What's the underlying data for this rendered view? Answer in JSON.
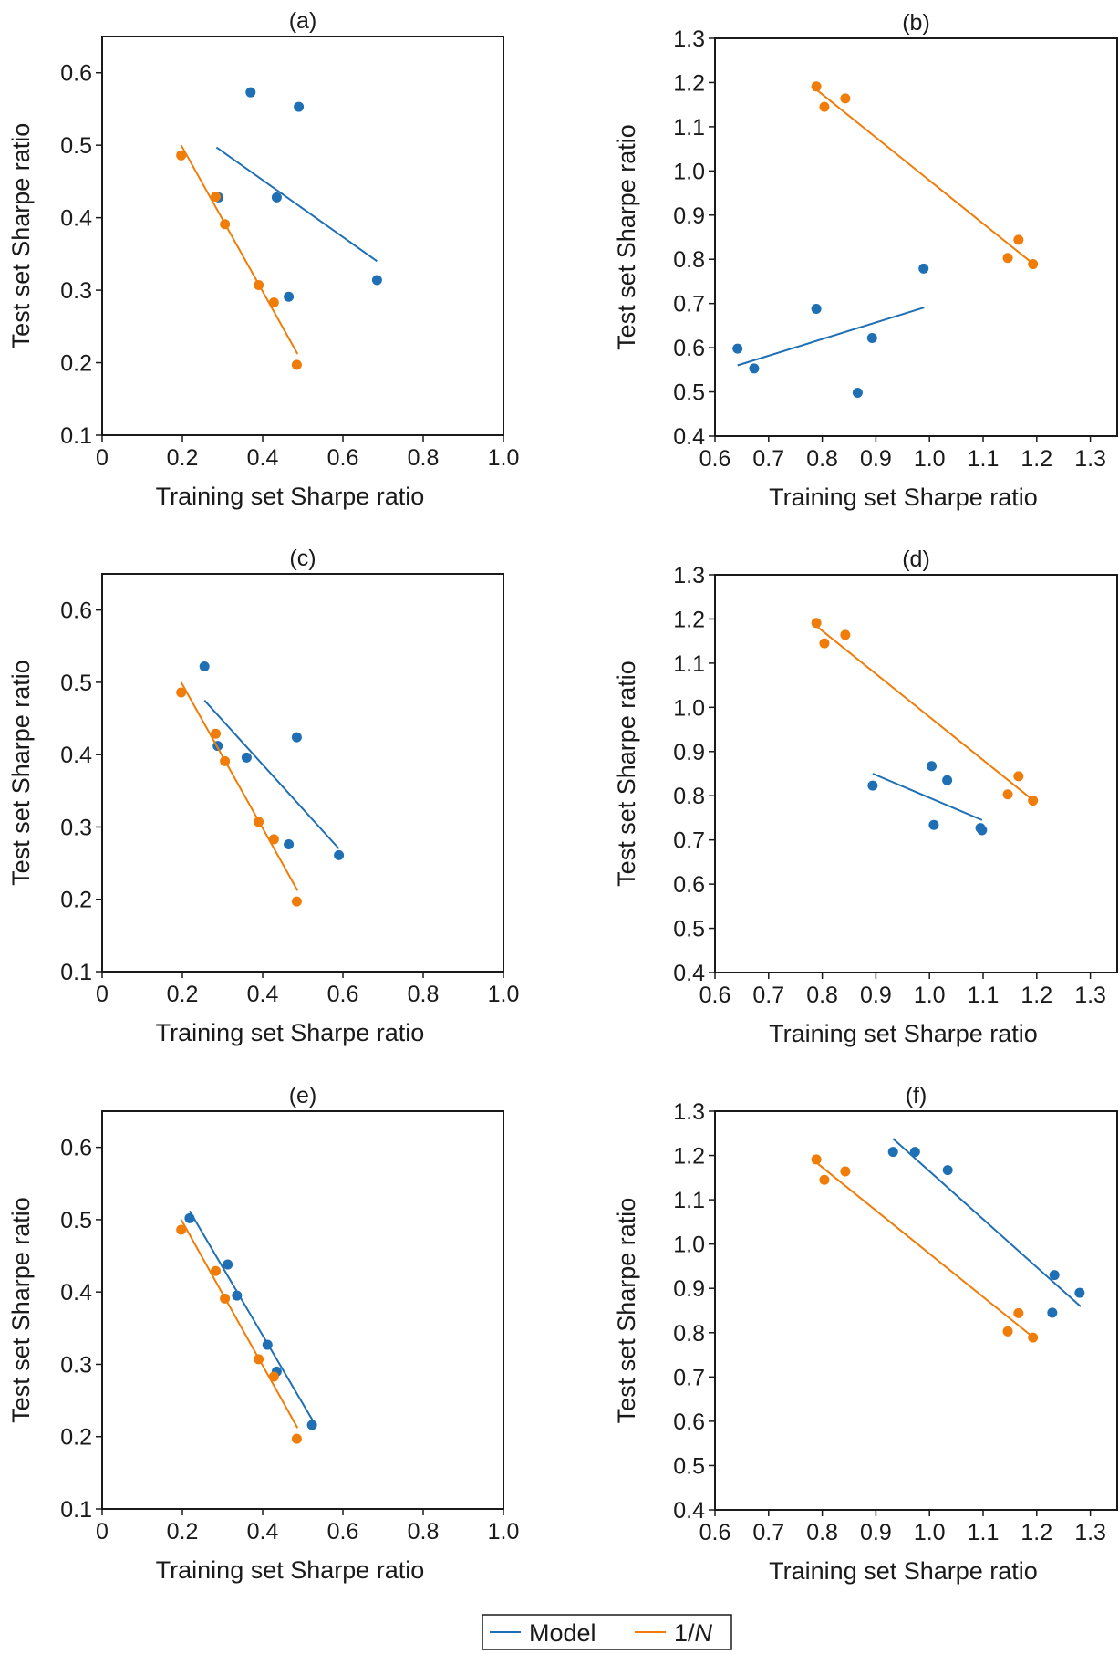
{
  "colors": {
    "model": "#1f6fb4",
    "one_over_n": "#f07c0a",
    "axis": "#1a1a1a"
  },
  "legend": {
    "entries": [
      {
        "key": "model",
        "label": "Model",
        "italic_part": ""
      },
      {
        "key": "one_over_n",
        "label": "1/",
        "italic_part": "N"
      }
    ]
  },
  "chart_data": [
    {
      "id": "a",
      "type": "scatter",
      "title": "(a)",
      "xlabel": "Training set Sharpe ratio",
      "ylabel": "Test set Sharpe ratio",
      "xlim": [
        0,
        1.0
      ],
      "ylim": [
        0.1,
        0.65
      ],
      "xticks": [
        0,
        0.2,
        0.4,
        0.6,
        0.8,
        1.0
      ],
      "xtick_labels": [
        "0",
        "0.2",
        "0.4",
        "0.6",
        "0.8",
        "1.0"
      ],
      "yticks": [
        0.1,
        0.2,
        0.3,
        0.4,
        0.5,
        0.6
      ],
      "ytick_labels": [
        "0.1",
        "0.2",
        "0.3",
        "0.4",
        "0.5",
        "0.6"
      ],
      "grid": false,
      "series": [
        {
          "name": "Model",
          "key": "model",
          "points": [
            [
              0.37,
              0.573
            ],
            [
              0.49,
              0.553
            ],
            [
              0.435,
              0.428
            ],
            [
              0.465,
              0.291
            ],
            [
              0.685,
              0.314
            ],
            [
              0.29,
              0.428
            ]
          ],
          "fit": [
            [
              0.285,
              0.497
            ],
            [
              0.685,
              0.34
            ]
          ]
        },
        {
          "name": "1/N",
          "key": "one_over_n",
          "points": [
            [
              0.197,
              0.486
            ],
            [
              0.283,
              0.429
            ],
            [
              0.306,
              0.391
            ],
            [
              0.39,
              0.307
            ],
            [
              0.428,
              0.283
            ],
            [
              0.485,
              0.197
            ]
          ],
          "fit": [
            [
              0.197,
              0.5
            ],
            [
              0.487,
              0.212
            ]
          ]
        }
      ]
    },
    {
      "id": "b",
      "type": "scatter",
      "title": "(b)",
      "xlabel": "Training set Sharpe ratio",
      "ylabel": "Test set Sharpe ratio",
      "xlim": [
        0.6,
        1.35
      ],
      "ylim": [
        0.4,
        1.3
      ],
      "xticks": [
        0.6,
        0.7,
        0.8,
        0.9,
        1.0,
        1.1,
        1.2,
        1.3
      ],
      "xtick_labels": [
        "0.6",
        "0.7",
        "0.8",
        "0.9",
        "1.0",
        "1.1",
        "1.2",
        "1.3"
      ],
      "yticks": [
        0.4,
        0.5,
        0.6,
        0.7,
        0.8,
        0.9,
        1.0,
        1.1,
        1.2,
        1.3
      ],
      "ytick_labels": [
        "0.4",
        "0.5",
        "0.6",
        "0.7",
        "0.8",
        "0.9",
        "1.0",
        "1.1",
        "1.2",
        "1.3"
      ],
      "grid": false,
      "series": [
        {
          "name": "Model",
          "key": "model",
          "points": [
            [
              0.642,
              0.598
            ],
            [
              0.673,
              0.553
            ],
            [
              0.789,
              0.688
            ],
            [
              0.866,
              0.498
            ],
            [
              0.893,
              0.622
            ],
            [
              0.989,
              0.779
            ]
          ],
          "fit": [
            [
              0.642,
              0.56
            ],
            [
              0.99,
              0.691
            ]
          ]
        },
        {
          "name": "1/N",
          "key": "one_over_n",
          "points": [
            [
              0.789,
              1.191
            ],
            [
              0.804,
              1.145
            ],
            [
              0.843,
              1.164
            ],
            [
              1.146,
              0.803
            ],
            [
              1.166,
              0.844
            ],
            [
              1.193,
              0.789
            ]
          ],
          "fit": [
            [
              0.789,
              1.184
            ],
            [
              1.193,
              0.79
            ]
          ]
        }
      ]
    },
    {
      "id": "c",
      "type": "scatter",
      "title": "(c)",
      "xlabel": "Training set Sharpe ratio",
      "ylabel": "Test set Sharpe ratio",
      "xlim": [
        0,
        1.0
      ],
      "ylim": [
        0.1,
        0.65
      ],
      "xticks": [
        0,
        0.2,
        0.4,
        0.6,
        0.8,
        1.0
      ],
      "xtick_labels": [
        "0",
        "0.2",
        "0.4",
        "0.6",
        "0.8",
        "1.0"
      ],
      "yticks": [
        0.1,
        0.2,
        0.3,
        0.4,
        0.5,
        0.6
      ],
      "ytick_labels": [
        "0.1",
        "0.2",
        "0.3",
        "0.4",
        "0.5",
        "0.6"
      ],
      "grid": false,
      "series": [
        {
          "name": "Model",
          "key": "model",
          "points": [
            [
              0.255,
              0.522
            ],
            [
              0.288,
              0.412
            ],
            [
              0.36,
              0.396
            ],
            [
              0.485,
              0.424
            ],
            [
              0.465,
              0.276
            ],
            [
              0.59,
              0.261
            ]
          ],
          "fit": [
            [
              0.255,
              0.475
            ],
            [
              0.59,
              0.27
            ]
          ]
        },
        {
          "name": "1/N",
          "key": "one_over_n",
          "points": [
            [
              0.197,
              0.486
            ],
            [
              0.283,
              0.429
            ],
            [
              0.306,
              0.391
            ],
            [
              0.39,
              0.307
            ],
            [
              0.428,
              0.283
            ],
            [
              0.485,
              0.197
            ]
          ],
          "fit": [
            [
              0.197,
              0.5
            ],
            [
              0.487,
              0.212
            ]
          ]
        }
      ]
    },
    {
      "id": "d",
      "type": "scatter",
      "title": "(d)",
      "xlabel": "Training set Sharpe ratio",
      "ylabel": "Test set Sharpe ratio",
      "xlim": [
        0.6,
        1.35
      ],
      "ylim": [
        0.4,
        1.3
      ],
      "xticks": [
        0.6,
        0.7,
        0.8,
        0.9,
        1.0,
        1.1,
        1.2,
        1.3
      ],
      "xtick_labels": [
        "0.6",
        "0.7",
        "0.8",
        "0.9",
        "1.0",
        "1.1",
        "1.2",
        "1.3"
      ],
      "yticks": [
        0.4,
        0.5,
        0.6,
        0.7,
        0.8,
        0.9,
        1.0,
        1.1,
        1.2,
        1.3
      ],
      "ytick_labels": [
        "0.4",
        "0.5",
        "0.6",
        "0.7",
        "0.8",
        "0.9",
        "1.0",
        "1.1",
        "1.2",
        "1.3"
      ],
      "grid": false,
      "series": [
        {
          "name": "Model",
          "key": "model",
          "points": [
            [
              0.894,
              0.823
            ],
            [
              1.004,
              0.867
            ],
            [
              1.033,
              0.835
            ],
            [
              1.008,
              0.734
            ],
            [
              1.095,
              0.727
            ],
            [
              1.098,
              0.722
            ]
          ],
          "fit": [
            [
              0.894,
              0.85
            ],
            [
              1.098,
              0.745
            ]
          ]
        },
        {
          "name": "1/N",
          "key": "one_over_n",
          "points": [
            [
              0.789,
              1.191
            ],
            [
              0.804,
              1.145
            ],
            [
              0.843,
              1.164
            ],
            [
              1.146,
              0.803
            ],
            [
              1.166,
              0.844
            ],
            [
              1.193,
              0.789
            ]
          ],
          "fit": [
            [
              0.789,
              1.184
            ],
            [
              1.193,
              0.79
            ]
          ]
        }
      ]
    },
    {
      "id": "e",
      "type": "scatter",
      "title": "(e)",
      "xlabel": "Training set Sharpe ratio",
      "ylabel": "Test set Sharpe ratio",
      "xlim": [
        0,
        1.0
      ],
      "ylim": [
        0.1,
        0.65
      ],
      "xticks": [
        0,
        0.2,
        0.4,
        0.6,
        0.8,
        1.0
      ],
      "xtick_labels": [
        "0",
        "0.2",
        "0.4",
        "0.6",
        "0.8",
        "1.0"
      ],
      "yticks": [
        0.1,
        0.2,
        0.3,
        0.4,
        0.5,
        0.6
      ],
      "ytick_labels": [
        "0.1",
        "0.2",
        "0.3",
        "0.4",
        "0.5",
        "0.6"
      ],
      "grid": false,
      "series": [
        {
          "name": "Model",
          "key": "model",
          "points": [
            [
              0.218,
              0.502
            ],
            [
              0.313,
              0.438
            ],
            [
              0.336,
              0.395
            ],
            [
              0.412,
              0.327
            ],
            [
              0.435,
              0.29
            ],
            [
              0.523,
              0.216
            ]
          ],
          "fit": [
            [
              0.218,
              0.512
            ],
            [
              0.525,
              0.222
            ]
          ]
        },
        {
          "name": "1/N",
          "key": "one_over_n",
          "points": [
            [
              0.197,
              0.486
            ],
            [
              0.283,
              0.429
            ],
            [
              0.306,
              0.391
            ],
            [
              0.39,
              0.307
            ],
            [
              0.428,
              0.283
            ],
            [
              0.485,
              0.197
            ]
          ],
          "fit": [
            [
              0.197,
              0.5
            ],
            [
              0.487,
              0.212
            ]
          ]
        }
      ]
    },
    {
      "id": "f",
      "type": "scatter",
      "title": "(f)",
      "xlabel": "Training set Sharpe ratio",
      "ylabel": "Test set Sharpe ratio",
      "xlim": [
        0.6,
        1.35
      ],
      "ylim": [
        0.4,
        1.3
      ],
      "xticks": [
        0.6,
        0.7,
        0.8,
        0.9,
        1.0,
        1.1,
        1.2,
        1.3
      ],
      "xtick_labels": [
        "0.6",
        "0.7",
        "0.8",
        "0.9",
        "1.0",
        "1.1",
        "1.2",
        "1.3"
      ],
      "yticks": [
        0.4,
        0.5,
        0.6,
        0.7,
        0.8,
        0.9,
        1.0,
        1.1,
        1.2,
        1.3
      ],
      "ytick_labels": [
        "0.4",
        "0.5",
        "0.6",
        "0.7",
        "0.8",
        "0.9",
        "1.0",
        "1.1",
        "1.2",
        "1.3"
      ],
      "grid": false,
      "series": [
        {
          "name": "Model",
          "key": "model",
          "points": [
            [
              0.932,
              1.208
            ],
            [
              0.973,
              1.208
            ],
            [
              1.034,
              1.167
            ],
            [
              1.233,
              0.93
            ],
            [
              1.229,
              0.845
            ],
            [
              1.28,
              0.89
            ]
          ],
          "fit": [
            [
              0.932,
              1.238
            ],
            [
              1.282,
              0.859
            ]
          ]
        },
        {
          "name": "1/N",
          "key": "one_over_n",
          "points": [
            [
              0.789,
              1.191
            ],
            [
              0.804,
              1.145
            ],
            [
              0.843,
              1.164
            ],
            [
              1.146,
              0.803
            ],
            [
              1.166,
              0.844
            ],
            [
              1.193,
              0.789
            ]
          ],
          "fit": [
            [
              0.789,
              1.184
            ],
            [
              1.193,
              0.79
            ]
          ]
        }
      ]
    }
  ]
}
